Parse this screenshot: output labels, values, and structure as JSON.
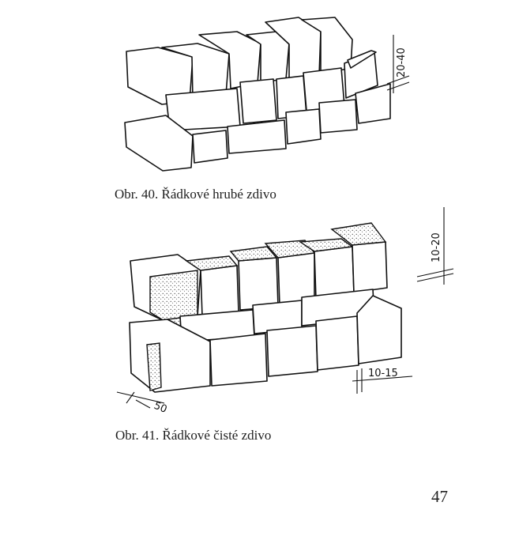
{
  "figures": [
    {
      "caption_number": "Obr. 40.",
      "caption_title": "Řádkové hrubé zdivo",
      "dimensions": [
        "20-40"
      ]
    },
    {
      "caption_number": "Obr. 41.",
      "caption_title": "Řádkové čisté zdivo",
      "dimensions": [
        "10-20",
        "10-15",
        "50"
      ]
    }
  ],
  "page_number": "47"
}
